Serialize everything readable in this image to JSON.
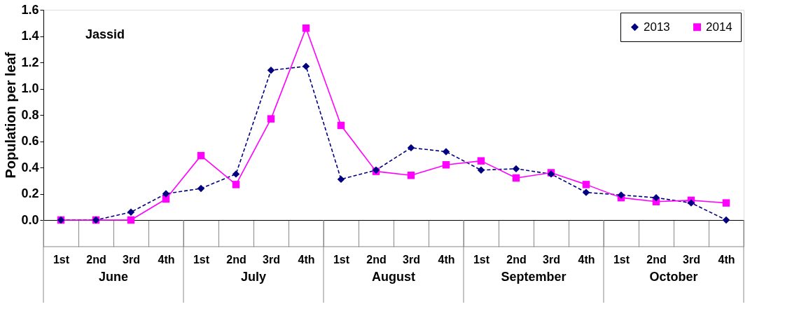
{
  "chart_data": {
    "type": "line",
    "ylabel": "Population per leaf",
    "annotations": [
      "Jassid",
      "June",
      "July",
      "August",
      "September",
      "October"
    ],
    "categories": [
      "1st",
      "2nd",
      "3rd",
      "4th",
      "1st",
      "2nd",
      "3rd",
      "4th",
      "1st",
      "2nd",
      "3rd",
      "4th",
      "1st",
      "2nd",
      "3rd",
      "4th",
      "1st",
      "2nd",
      "3rd",
      "4th"
    ],
    "series": [
      {
        "name": "2013",
        "color": "#000080",
        "marker": "diamond",
        "line_style": "dashed",
        "values": [
          0,
          0,
          0.06,
          0.2,
          0.24,
          0.35,
          1.14,
          1.17,
          0.31,
          0.38,
          0.55,
          0.52,
          0.38,
          0.39,
          0.35,
          0.21,
          0.19,
          0.17,
          0.13,
          0.0
        ]
      },
      {
        "name": "2014",
        "color": "#ff00ff",
        "marker": "square",
        "line_style": "solid",
        "values": [
          0,
          0,
          0,
          0.16,
          0.49,
          0.27,
          0.77,
          1.46,
          0.72,
          0.37,
          0.34,
          0.42,
          0.45,
          0.32,
          0.36,
          0.27,
          0.17,
          0.14,
          0.15,
          0.13
        ]
      }
    ],
    "ylim": [
      0,
      1.6
    ],
    "yticks": [
      {
        "value": 0,
        "label": "0.0"
      },
      {
        "value": 0.2,
        "label": "0.2"
      },
      {
        "value": 0.4,
        "label": "0.4"
      },
      {
        "value": 0.6,
        "label": "0.6"
      },
      {
        "value": 0.8,
        "label": "0.8"
      },
      {
        "value": 1.0,
        "label": "1.0"
      },
      {
        "value": 1.2,
        "label": "1.2"
      },
      {
        "value": 1.4,
        "label": "1.4"
      },
      {
        "value": 1.6,
        "label": "1.6"
      }
    ],
    "grid": false,
    "legend": "top right"
  }
}
